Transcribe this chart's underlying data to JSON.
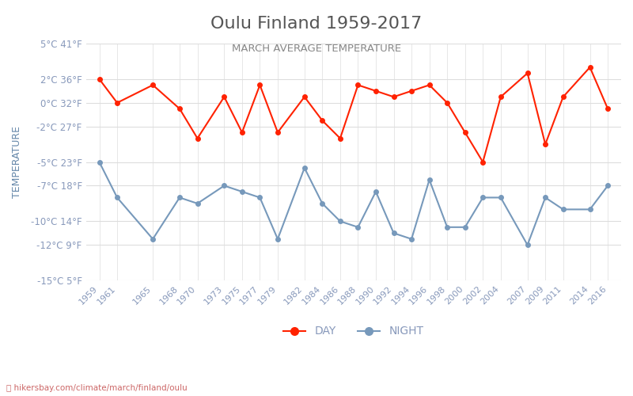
{
  "title": "Oulu Finland 1959-2017",
  "subtitle": "MARCH AVERAGE TEMPERATURE",
  "ylabel": "TEMPERATURE",
  "watermark": "hikersbay.com/climate/march/finland/oulu",
  "title_color": "#555555",
  "subtitle_color": "#888888",
  "ylabel_color": "#6688aa",
  "axis_label_color": "#8899bb",
  "grid_color": "#dddddd",
  "background_color": "#ffffff",
  "ylim": [
    -15,
    5
  ],
  "yticks_celsius": [
    5,
    2,
    0,
    -2,
    -5,
    -7,
    -10,
    -12,
    -15
  ],
  "yticks_fahrenheit": [
    41,
    36,
    32,
    27,
    23,
    18,
    14,
    9,
    5
  ],
  "years": [
    1959,
    1961,
    1965,
    1968,
    1970,
    1973,
    1975,
    1977,
    1979,
    1982,
    1984,
    1986,
    1988,
    1990,
    1992,
    1994,
    1996,
    1998,
    2000,
    2002,
    2004,
    2007,
    2009,
    2011,
    2014,
    2016
  ],
  "day_values": [
    2.0,
    0.0,
    1.5,
    -0.5,
    -3.0,
    0.5,
    -2.5,
    1.5,
    -2.5,
    0.5,
    -1.5,
    -3.0,
    1.5,
    1.0,
    0.5,
    1.0,
    1.5,
    0.0,
    -2.5,
    -5.0,
    0.5,
    2.5,
    -3.5,
    0.5,
    3.0,
    -0.5
  ],
  "night_values": [
    -5.0,
    -8.0,
    -11.5,
    -8.0,
    -8.5,
    -7.0,
    -7.5,
    -8.0,
    -11.5,
    -5.5,
    -8.5,
    -10.0,
    -10.5,
    -7.5,
    -11.0,
    -11.5,
    -6.5,
    -10.5,
    -10.5,
    -8.0,
    -8.0,
    -12.0,
    -8.0,
    -9.0,
    -9.0,
    -7.0
  ],
  "day_color": "#ff2200",
  "night_color": "#7799bb",
  "day_label": "DAY",
  "night_label": "NIGHT",
  "legend_marker": "o",
  "line_width": 1.5,
  "marker_size": 4
}
